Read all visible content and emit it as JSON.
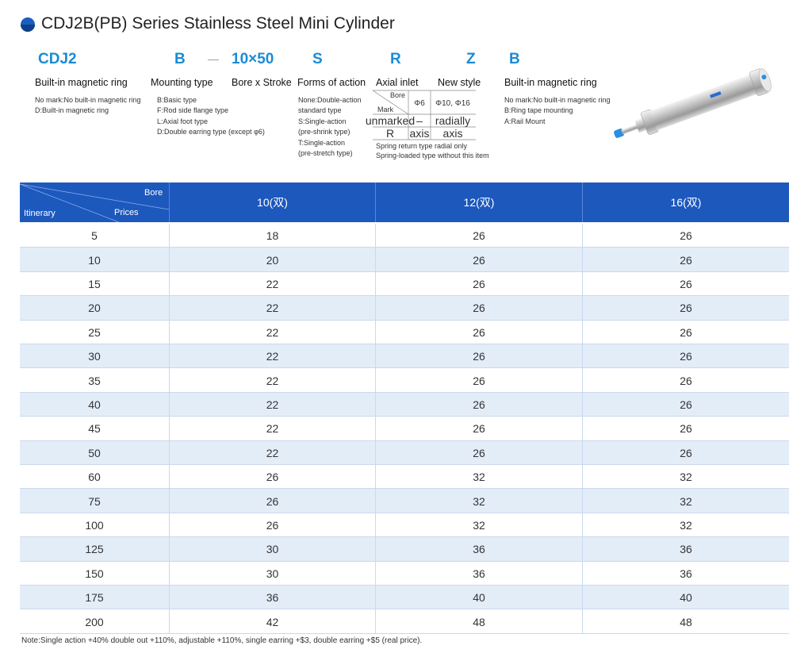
{
  "title": "CDJ2B(PB) Series Stainless Steel Mini Cylinder",
  "codes": [
    "CDJ2",
    "B",
    "—",
    "10×50",
    "S",
    "R",
    "Z",
    "B"
  ],
  "labels": [
    "Built-in magnetic ring",
    "Mounting type",
    "Bore x Stroke",
    "Forms of action",
    "Axial inlet",
    "New style",
    "Built-in magnetic ring"
  ],
  "descriptions": [
    [
      "No mark:No built-in magnetic ring",
      "D:Built-in magnetic ring"
    ],
    [
      "B:Basic type",
      "F:Rod side flange type",
      "L:Axial foot type",
      "D:Double earring type (except φ6)"
    ],
    [
      "None:Double-action",
      "standard type",
      "S:Single-action",
      "(pre-shrink type)",
      "T:Single-action",
      "(pre-stretch type)"
    ],
    [
      "No mark:No built-in magnetic ring",
      "B:Ring tape mounting",
      "A:Rail Mount"
    ]
  ],
  "axial_inlet": {
    "bore": "Bore",
    "mark": "Mark",
    "columns": [
      "Φ6",
      "Φ10, Φ16"
    ],
    "rows": [
      [
        "unmarked",
        "–",
        "radially"
      ],
      [
        "R",
        "axis",
        "axis"
      ]
    ],
    "notes": [
      "Spring return type radial only",
      "Spring-loaded type without this item"
    ]
  },
  "table": {
    "corner": {
      "bore": "Bore",
      "itinerary": "Itinerary",
      "prices": "Prices"
    },
    "columns": [
      "10(双)",
      "12(双)",
      "16(双)"
    ],
    "rows": [
      [
        5,
        18,
        26,
        26
      ],
      [
        10,
        20,
        26,
        26
      ],
      [
        15,
        22,
        26,
        26
      ],
      [
        20,
        22,
        26,
        26
      ],
      [
        25,
        22,
        26,
        26
      ],
      [
        30,
        22,
        26,
        26
      ],
      [
        35,
        22,
        26,
        26
      ],
      [
        40,
        22,
        26,
        26
      ],
      [
        45,
        22,
        26,
        26
      ],
      [
        50,
        22,
        26,
        26
      ],
      [
        60,
        26,
        32,
        32
      ],
      [
        75,
        26,
        32,
        32
      ],
      [
        100,
        26,
        32,
        32
      ],
      [
        125,
        30,
        36,
        36
      ],
      [
        150,
        30,
        36,
        36
      ],
      [
        175,
        36,
        40,
        40
      ],
      [
        200,
        42,
        48,
        48
      ]
    ]
  },
  "note": "Note:Single action +40% double out +110%, adjustable +110%, single earring +$3, double earring +$5 (real price)."
}
